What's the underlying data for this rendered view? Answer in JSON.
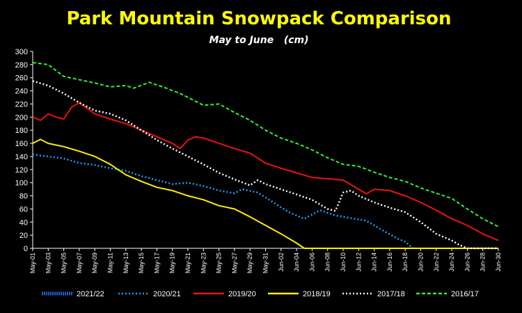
{
  "chart_data": {
    "type": "line",
    "title": "Park Mountain Snowpack Comparison",
    "subtitle": "May to June   (cm)",
    "xlabel": "",
    "ylabel": "",
    "ylim": [
      0,
      300
    ],
    "yticks": [
      "0",
      "20",
      "40",
      "60",
      "80",
      "100",
      "120",
      "140",
      "160",
      "180",
      "200",
      "220",
      "240",
      "260",
      "280",
      "300"
    ],
    "x_start": "May-01",
    "x_end": "Jun-30",
    "x_tick_labels": [
      "May-01",
      "May-03",
      "May-05",
      "May-07",
      "May-09",
      "May-11",
      "May-13",
      "May-15",
      "May-17",
      "May-19",
      "May-21",
      "May-23",
      "May-25",
      "May-27",
      "May-29",
      "May-31",
      "Jun-02",
      "Jun-04",
      "Jun-06",
      "Jun-08",
      "Jun-10",
      "Jun-12",
      "Jun-14",
      "Jun-16",
      "Jun-18",
      "Jun-20",
      "Jun-22",
      "Jun-24",
      "Jun-26",
      "Jun-28",
      "Jun-30"
    ],
    "grid": false,
    "legend_position": "bottom",
    "series": [
      {
        "name": "2021/22",
        "color": "#1f5fd0",
        "style": "dense-dot",
        "points": []
      },
      {
        "name": "2020/21",
        "color": "#1ea0ff",
        "style": "dot",
        "points": [
          [
            "May-01",
            143
          ],
          [
            "May-03",
            140
          ],
          [
            "May-05",
            137
          ],
          [
            "May-07",
            130
          ],
          [
            "May-09",
            127
          ],
          [
            "May-11",
            122
          ],
          [
            "May-13",
            118
          ],
          [
            "May-15",
            110
          ],
          [
            "May-17",
            104
          ],
          [
            "May-19",
            98
          ],
          [
            "May-21",
            100
          ],
          [
            "May-23",
            95
          ],
          [
            "May-25",
            88
          ],
          [
            "May-27",
            84
          ],
          [
            "May-28",
            90
          ],
          [
            "May-30",
            85
          ],
          [
            "Jun-01",
            70
          ],
          [
            "Jun-03",
            55
          ],
          [
            "Jun-05",
            45
          ],
          [
            "Jun-07",
            58
          ],
          [
            "Jun-09",
            50
          ],
          [
            "Jun-11",
            46
          ],
          [
            "Jun-13",
            42
          ],
          [
            "Jun-15",
            28
          ],
          [
            "Jun-17",
            15
          ],
          [
            "Jun-18",
            10
          ],
          [
            "Jun-19",
            0
          ]
        ]
      },
      {
        "name": "2019/20",
        "color": "#ee1111",
        "style": "solid",
        "points": [
          [
            "May-01",
            200
          ],
          [
            "May-02",
            195
          ],
          [
            "May-03",
            205
          ],
          [
            "May-04",
            200
          ],
          [
            "May-05",
            197
          ],
          [
            "May-06",
            215
          ],
          [
            "May-07",
            222
          ],
          [
            "May-09",
            205
          ],
          [
            "May-11",
            197
          ],
          [
            "May-13",
            190
          ],
          [
            "May-15",
            180
          ],
          [
            "May-17",
            170
          ],
          [
            "May-19",
            160
          ],
          [
            "May-20",
            152
          ],
          [
            "May-21",
            165
          ],
          [
            "May-22",
            170
          ],
          [
            "May-23",
            168
          ],
          [
            "May-25",
            160
          ],
          [
            "May-27",
            152
          ],
          [
            "May-29",
            145
          ],
          [
            "May-31",
            130
          ],
          [
            "Jun-02",
            122
          ],
          [
            "Jun-04",
            115
          ],
          [
            "Jun-06",
            108
          ],
          [
            "Jun-08",
            106
          ],
          [
            "Jun-10",
            104
          ],
          [
            "Jun-12",
            90
          ],
          [
            "Jun-13",
            83
          ],
          [
            "Jun-14",
            90
          ],
          [
            "Jun-16",
            88
          ],
          [
            "Jun-18",
            80
          ],
          [
            "Jun-20",
            70
          ],
          [
            "Jun-22",
            58
          ],
          [
            "Jun-24",
            45
          ],
          [
            "Jun-26",
            35
          ],
          [
            "Jun-28",
            22
          ],
          [
            "Jun-30",
            12
          ]
        ]
      },
      {
        "name": "2018/19",
        "color": "#ffee00",
        "style": "solid",
        "points": [
          [
            "May-01",
            160
          ],
          [
            "May-02",
            166
          ],
          [
            "May-03",
            160
          ],
          [
            "May-05",
            155
          ],
          [
            "May-07",
            148
          ],
          [
            "May-09",
            140
          ],
          [
            "May-11",
            128
          ],
          [
            "May-13",
            112
          ],
          [
            "May-15",
            102
          ],
          [
            "May-17",
            93
          ],
          [
            "May-19",
            88
          ],
          [
            "May-21",
            80
          ],
          [
            "May-23",
            74
          ],
          [
            "May-25",
            65
          ],
          [
            "May-27",
            60
          ],
          [
            "May-29",
            48
          ],
          [
            "May-31",
            35
          ],
          [
            "Jun-02",
            22
          ],
          [
            "Jun-04",
            8
          ],
          [
            "Jun-05",
            0
          ],
          [
            "Jun-30",
            0
          ]
        ]
      },
      {
        "name": "2017/18",
        "color": "#ffffff",
        "style": "dot",
        "points": [
          [
            "May-01",
            255
          ],
          [
            "May-03",
            248
          ],
          [
            "May-05",
            236
          ],
          [
            "May-07",
            222
          ],
          [
            "May-09",
            210
          ],
          [
            "May-11",
            205
          ],
          [
            "May-13",
            195
          ],
          [
            "May-15",
            180
          ],
          [
            "May-17",
            165
          ],
          [
            "May-19",
            152
          ],
          [
            "May-21",
            140
          ],
          [
            "May-23",
            128
          ],
          [
            "May-25",
            115
          ],
          [
            "May-27",
            105
          ],
          [
            "May-29",
            96
          ],
          [
            "May-30",
            104
          ],
          [
            "May-31",
            98
          ],
          [
            "Jun-02",
            90
          ],
          [
            "Jun-04",
            82
          ],
          [
            "Jun-06",
            74
          ],
          [
            "Jun-08",
            60
          ],
          [
            "Jun-09",
            57
          ],
          [
            "Jun-10",
            85
          ],
          [
            "Jun-11",
            88
          ],
          [
            "Jun-12",
            80
          ],
          [
            "Jun-14",
            70
          ],
          [
            "Jun-16",
            62
          ],
          [
            "Jun-18",
            55
          ],
          [
            "Jun-20",
            40
          ],
          [
            "Jun-22",
            22
          ],
          [
            "Jun-24",
            12
          ],
          [
            "Jun-25",
            5
          ],
          [
            "Jun-26",
            0
          ],
          [
            "Jun-30",
            0
          ]
        ]
      },
      {
        "name": "2016/17",
        "color": "#33ee33",
        "style": "dash",
        "points": [
          [
            "May-01",
            283
          ],
          [
            "May-03",
            280
          ],
          [
            "May-05",
            262
          ],
          [
            "May-07",
            257
          ],
          [
            "May-09",
            252
          ],
          [
            "May-11",
            246
          ],
          [
            "May-13",
            248
          ],
          [
            "May-14",
            244
          ],
          [
            "May-16",
            253
          ],
          [
            "May-18",
            245
          ],
          [
            "May-20",
            236
          ],
          [
            "May-22",
            224
          ],
          [
            "May-23",
            218
          ],
          [
            "May-25",
            220
          ],
          [
            "May-27",
            207
          ],
          [
            "May-29",
            195
          ],
          [
            "May-31",
            180
          ],
          [
            "Jun-02",
            168
          ],
          [
            "Jun-04",
            160
          ],
          [
            "Jun-06",
            150
          ],
          [
            "Jun-08",
            138
          ],
          [
            "Jun-10",
            128
          ],
          [
            "Jun-12",
            125
          ],
          [
            "Jun-14",
            116
          ],
          [
            "Jun-16",
            108
          ],
          [
            "Jun-18",
            102
          ],
          [
            "Jun-20",
            92
          ],
          [
            "Jun-22",
            84
          ],
          [
            "Jun-24",
            76
          ],
          [
            "Jun-26",
            60
          ],
          [
            "Jun-28",
            45
          ],
          [
            "Jun-30",
            33
          ]
        ]
      }
    ]
  }
}
